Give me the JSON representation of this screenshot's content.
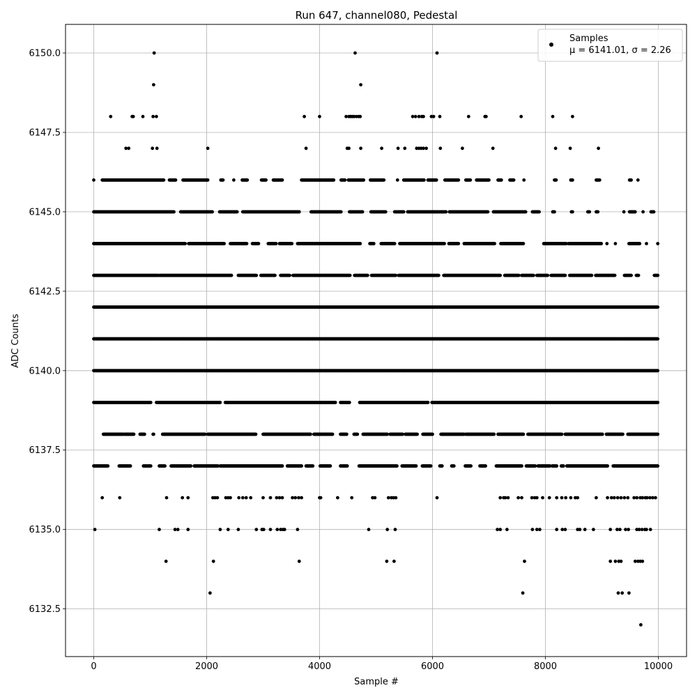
{
  "chart_data": {
    "type": "scatter",
    "title": "Run 647, channel080, Pedestal",
    "xlabel": "Sample #",
    "ylabel": "ADC Counts",
    "xlim": [
      -500,
      10500
    ],
    "ylim": [
      6131.0,
      6150.9
    ],
    "xticks": [
      0,
      2000,
      4000,
      6000,
      8000,
      10000
    ],
    "xtick_labels": [
      "0",
      "2000",
      "4000",
      "6000",
      "8000",
      "10000"
    ],
    "yticks": [
      6132.5,
      6135.0,
      6137.5,
      6140.0,
      6142.5,
      6145.0,
      6147.5,
      6150.0
    ],
    "ytick_labels": [
      "6132.5",
      "6135.0",
      "6137.5",
      "6140.0",
      "6142.5",
      "6145.0",
      "6147.5",
      "6150.0"
    ],
    "grid": true,
    "legend": {
      "position": "top-right",
      "entries": [
        {
          "label": "Samples",
          "stats": "μ = 6141.01, σ = 2.26"
        }
      ]
    },
    "marker_color": "#000000",
    "series": [
      {
        "name": "Samples",
        "x_range": [
          0,
          9999
        ],
        "mean": 6141.01,
        "std": 2.26,
        "level_points": [
          {
            "y": 6150,
            "x": [
              1070,
              4630,
              6080
            ]
          },
          {
            "y": 6149,
            "x": [
              1060,
              4730
            ]
          },
          {
            "y": 6148,
            "x": [
              300,
              680,
              700,
              870,
              1050,
              1110,
              3730,
              4000,
              4470,
              4520,
              4550,
              4580,
              4610,
              4650,
              4690,
              4720,
              5650,
              5700,
              5760,
              5810,
              5840,
              5980,
              6020,
              6130,
              6640,
              6930,
              6950,
              7570,
              8130,
              8480
            ]
          },
          {
            "y": 6147,
            "x": [
              570,
              620,
              1040,
              1120,
              2020,
              3760,
              4490,
              4520,
              4730,
              5100,
              5390,
              5510,
              5720,
              5760,
              5800,
              5840,
              5890,
              6140,
              6530,
              7070,
              8180,
              8440,
              8940
            ]
          },
          {
            "y": 6146,
            "from_to": [
              [
                0,
                0
              ],
              [
                150,
                1240
              ],
              [
                1340,
                1450
              ],
              [
                1580,
                2020
              ],
              [
                2250,
                2290
              ],
              [
                2480,
                2480
              ],
              [
                2630,
                2720
              ],
              [
                2970,
                3050
              ],
              [
                3180,
                3340
              ],
              [
                3680,
                4250
              ],
              [
                4380,
                4450
              ],
              [
                4510,
                4780
              ],
              [
                4900,
                5140
              ],
              [
                5380,
                5380
              ],
              [
                5490,
                5850
              ],
              [
                5920,
                6070
              ],
              [
                6220,
                6460
              ],
              [
                6590,
                6670
              ],
              [
                6780,
                7000
              ],
              [
                7160,
                7220
              ],
              [
                7370,
                7440
              ],
              [
                7620,
                7620
              ],
              [
                8160,
                8190
              ],
              [
                8450,
                8480
              ],
              [
                8900,
                8960
              ],
              [
                9490,
                9520
              ],
              [
                9640,
                9640
              ]
            ]
          },
          {
            "y": 6145,
            "from_to": [
              [
                0,
                1420
              ],
              [
                1540,
                2100
              ],
              [
                2230,
                2540
              ],
              [
                2640,
                3640
              ],
              [
                3850,
                4380
              ],
              [
                4530,
                4760
              ],
              [
                4910,
                5170
              ],
              [
                5330,
                5490
              ],
              [
                5560,
                6240
              ],
              [
                6300,
                6980
              ],
              [
                7080,
                7650
              ],
              [
                7770,
                7890
              ],
              [
                8130,
                8160
              ],
              [
                8460,
                8480
              ],
              [
                8750,
                8780
              ],
              [
                8900,
                8930
              ],
              [
                9390,
                9390
              ],
              [
                9490,
                9590
              ],
              [
                9730,
                9730
              ],
              [
                9870,
                9920
              ]
            ]
          },
          {
            "y": 6144,
            "from_to": [
              [
                0,
                1620
              ],
              [
                1680,
                2310
              ],
              [
                2420,
                2710
              ],
              [
                2810,
                2920
              ],
              [
                3090,
                3230
              ],
              [
                3290,
                3510
              ],
              [
                3610,
                4720
              ],
              [
                4890,
                4960
              ],
              [
                5090,
                5330
              ],
              [
                5420,
                6210
              ],
              [
                6290,
                6460
              ],
              [
                6560,
                7100
              ],
              [
                7210,
                7610
              ],
              [
                7970,
                8370
              ],
              [
                8410,
                8990
              ],
              [
                9090,
                9090
              ],
              [
                9240,
                9240
              ],
              [
                9480,
                9670
              ],
              [
                9790,
                9790
              ],
              [
                9990,
                9990
              ]
            ]
          },
          {
            "y": 6143,
            "from_to": [
              [
                0,
                1140
              ],
              [
                1160,
                2440
              ],
              [
                2560,
                2880
              ],
              [
                2960,
                3210
              ],
              [
                3310,
                3470
              ],
              [
                3530,
                4540
              ],
              [
                4620,
                4850
              ],
              [
                4920,
                5350
              ],
              [
                5400,
                6110
              ],
              [
                6200,
                7200
              ],
              [
                7280,
                7530
              ],
              [
                7580,
                7790
              ],
              [
                7850,
                8040
              ],
              [
                8100,
                8350
              ],
              [
                8430,
                8820
              ],
              [
                8890,
                9230
              ],
              [
                9400,
                9520
              ],
              [
                9610,
                9650
              ],
              [
                9930,
                9990
              ]
            ]
          },
          {
            "y": 6142,
            "from_to": [
              [
                0,
                9999
              ]
            ]
          },
          {
            "y": 6141,
            "from_to": [
              [
                0,
                9999
              ]
            ]
          },
          {
            "y": 6140,
            "from_to": [
              [
                0,
                9999
              ]
            ]
          },
          {
            "y": 6139,
            "from_to": [
              [
                0,
                1010
              ],
              [
                1110,
                2240
              ],
              [
                2330,
                4280
              ],
              [
                4370,
                4530
              ],
              [
                4710,
                5920
              ],
              [
                5990,
                9999
              ]
            ]
          },
          {
            "y": 6138,
            "from_to": [
              [
                170,
                530
              ],
              [
                550,
                710
              ],
              [
                820,
                900
              ],
              [
                1050,
                1060
              ],
              [
                1220,
                1970
              ],
              [
                2020,
                2870
              ],
              [
                3000,
                3840
              ],
              [
                3900,
                4230
              ],
              [
                4370,
                4480
              ],
              [
                4610,
                4670
              ],
              [
                4770,
                5200
              ],
              [
                5250,
                5470
              ],
              [
                5520,
                5730
              ],
              [
                5830,
                6000
              ],
              [
                6150,
                6560
              ],
              [
                6590,
                7090
              ],
              [
                7160,
                7610
              ],
              [
                7690,
                8290
              ],
              [
                8350,
                9010
              ],
              [
                9080,
                9370
              ],
              [
                9460,
                9999
              ]
            ]
          },
          {
            "y": 6137,
            "from_to": [
              [
                0,
                250
              ],
              [
                450,
                650
              ],
              [
                880,
                1010
              ],
              [
                1160,
                1260
              ],
              [
                1370,
                1720
              ],
              [
                1780,
                2200
              ],
              [
                2240,
                3340
              ],
              [
                3430,
                3680
              ],
              [
                3760,
                3880
              ],
              [
                4010,
                4190
              ],
              [
                4370,
                4490
              ],
              [
                4700,
                5370
              ],
              [
                5460,
                5710
              ],
              [
                5820,
                5970
              ],
              [
                6130,
                6170
              ],
              [
                6340,
                6380
              ],
              [
                6580,
                6680
              ],
              [
                6840,
                6940
              ],
              [
                7130,
                7580
              ],
              [
                7660,
                7820
              ],
              [
                7870,
                8080
              ],
              [
                8120,
                8200
              ],
              [
                8280,
                8320
              ],
              [
                8380,
                9100
              ],
              [
                9200,
                9999
              ]
            ]
          },
          {
            "y": 6136,
            "x": [
              150,
              460,
              1290,
              1570,
              1670,
              2110,
              2150,
              2190,
              2340,
              2380,
              2420,
              2570,
              2640,
              2700,
              2780,
              3000,
              3130,
              3240,
              3290,
              3340,
              3520,
              3570,
              3630,
              3680,
              4000,
              4020,
              4320,
              4570,
              4940,
              4980,
              5220,
              5270,
              5310,
              5350,
              6080,
              7200,
              7260,
              7290,
              7340,
              7520,
              7580,
              7760,
              7810,
              7850,
              7950,
              8070,
              8200,
              8290,
              8360,
              8450,
              8530,
              8570,
              8900,
              9100,
              9170,
              9220,
              9280,
              9340,
              9400,
              9460,
              9570,
              9620,
              9680,
              9720,
              9770,
              9800,
              9850,
              9900,
              9950
            ]
          },
          {
            "y": 6135,
            "x": [
              20,
              1160,
              1440,
              1490,
              1670,
              2240,
              2380,
              2560,
              2880,
              2980,
              3010,
              3130,
              3250,
              3310,
              3350,
              3380,
              3610,
              4870,
              5200,
              5340,
              7150,
              7200,
              7320,
              7770,
              7850,
              7900,
              8200,
              8300,
              8350,
              8570,
              8610,
              8700,
              8850,
              9150,
              9270,
              9320,
              9420,
              9470,
              9620,
              9660,
              9710,
              9760,
              9790,
              9860
            ]
          },
          {
            "y": 6134,
            "x": [
              1280,
              2120,
              3640,
              5190,
              5320,
              7630,
              9150,
              9240,
              9300,
              9340,
              9590,
              9640,
              9680,
              9720
            ]
          },
          {
            "y": 6133,
            "x": [
              2060,
              7600,
              9290,
              9360,
              9480
            ]
          },
          {
            "y": 6132,
            "x": [
              9690
            ]
          }
        ]
      }
    ]
  }
}
